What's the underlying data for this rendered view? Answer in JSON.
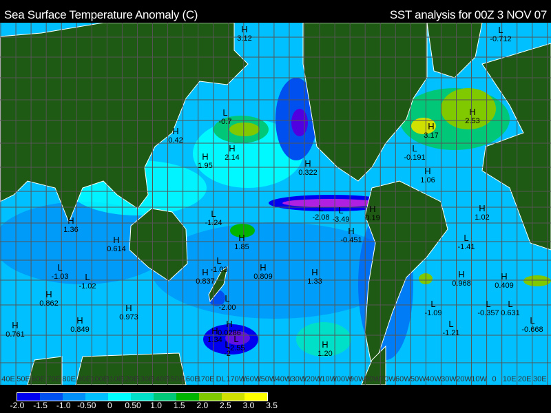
{
  "title_left": "Sea Surface Temperature Anomaly (C)",
  "title_right": "SST analysis for 00Z 3 NOV 07",
  "colorbar": {
    "colors": [
      "#0000f0",
      "#0050f0",
      "#0090f8",
      "#00c0ff",
      "#00ffff",
      "#00e0c8",
      "#00c878",
      "#00b400",
      "#80c800",
      "#d0e000",
      "#ffff00"
    ],
    "ticks": [
      "-2.0",
      "-1.5",
      "-1.0",
      "-0.50",
      "0",
      "0.50",
      "1.0",
      "1.5",
      "2.0",
      "2.5",
      "3.0",
      "3.5"
    ]
  },
  "longitude_labels": [
    "40E",
    "50E",
    "60E",
    "70E",
    "80E",
    "90E",
    "100E",
    "110E",
    "120E",
    "130E",
    "140E",
    "150E",
    "160E",
    "170E",
    "DL",
    "170W",
    "160W",
    "150W",
    "140W",
    "130W",
    "120W",
    "110W",
    "100W",
    "90W",
    "80W",
    "70W",
    "60W",
    "50W",
    "40W",
    "30W",
    "20W",
    "10W",
    "0",
    "10E",
    "20E",
    "30E"
  ],
  "colors": {
    "land": "#1e5a14",
    "ocean": "#00c0ff",
    "grid": "#555555",
    "coast": "#ffffff"
  },
  "extrema": [
    {
      "kind": "H",
      "value": "3.12"
    },
    {
      "kind": "L",
      "value": "-0.712"
    },
    {
      "kind": "L",
      "value": "-0.7"
    },
    {
      "kind": "H",
      "value": "0.42"
    },
    {
      "kind": "H",
      "value": "1.95"
    },
    {
      "kind": "H",
      "value": "2.14"
    },
    {
      "kind": "H",
      "value": "2.53"
    },
    {
      "kind": "H",
      "value": "3.17"
    },
    {
      "kind": "L",
      "value": "-0.191"
    },
    {
      "kind": "H",
      "value": "0.322"
    },
    {
      "kind": "H",
      "value": "1.06"
    },
    {
      "kind": "H",
      "value": "1.36"
    },
    {
      "kind": "L",
      "value": "-1.24"
    },
    {
      "kind": "L",
      "value": "-2.08"
    },
    {
      "kind": "L",
      "value": "-3.49"
    },
    {
      "kind": "H",
      "value": "0.19"
    },
    {
      "kind": "H",
      "value": "-0.451"
    },
    {
      "kind": "H",
      "value": "1.02"
    },
    {
      "kind": "L",
      "value": "-1.41"
    },
    {
      "kind": "H",
      "value": "0.614"
    },
    {
      "kind": "H",
      "value": "1.85"
    },
    {
      "kind": "L",
      "value": "-1.03"
    },
    {
      "kind": "H",
      "value": "0.809"
    },
    {
      "kind": "H",
      "value": "0.837"
    },
    {
      "kind": "L",
      "value": "-1.03"
    },
    {
      "kind": "L",
      "value": "-1.02"
    },
    {
      "kind": "H",
      "value": "1.33"
    },
    {
      "kind": "H",
      "value": "0.968"
    },
    {
      "kind": "H",
      "value": "0.409"
    },
    {
      "kind": "H",
      "value": "0.862"
    },
    {
      "kind": "L",
      "value": "-2.00"
    },
    {
      "kind": "H",
      "value": "0.973"
    },
    {
      "kind": "L",
      "value": "-1.09"
    },
    {
      "kind": "L",
      "value": "-0.357"
    },
    {
      "kind": "L",
      "value": "0.631"
    },
    {
      "kind": "L",
      "value": "-0.668"
    },
    {
      "kind": "H",
      "value": "0.761"
    },
    {
      "kind": "H",
      "value": "0.849"
    },
    {
      "kind": "H",
      "value": "0.0286"
    },
    {
      "kind": "H",
      "value": "1.34"
    },
    {
      "kind": "L",
      "value": "-2.55"
    },
    {
      "kind": "L",
      "value": "-2"
    },
    {
      "kind": "L",
      "value": "-1.21"
    },
    {
      "kind": "H",
      "value": "1.20"
    }
  ]
}
